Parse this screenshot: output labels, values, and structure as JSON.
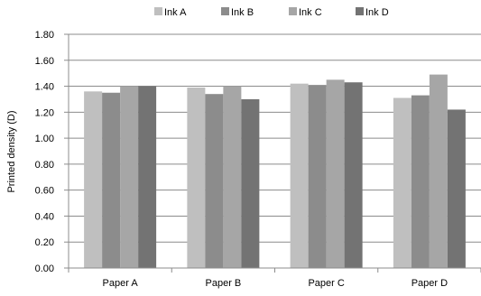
{
  "chart_data": {
    "type": "bar",
    "categories": [
      "Paper A",
      "Paper B",
      "Paper C",
      "Paper D"
    ],
    "series": [
      {
        "name": "Ink A",
        "color": "#bfbfbf",
        "values": [
          1.36,
          1.39,
          1.42,
          1.31
        ]
      },
      {
        "name": "Ink B",
        "color": "#8c8c8c",
        "values": [
          1.35,
          1.34,
          1.41,
          1.33
        ]
      },
      {
        "name": "Ink C",
        "color": "#a6a6a6",
        "values": [
          1.4,
          1.4,
          1.45,
          1.49
        ]
      },
      {
        "name": "Ink D",
        "color": "#737373",
        "values": [
          1.4,
          1.3,
          1.43,
          1.22
        ]
      }
    ],
    "ylabel": "Printed density (D)",
    "xlabel": "",
    "ylim": [
      0,
      1.8
    ],
    "yticks": [
      "0.00",
      "0.20",
      "0.40",
      "0.60",
      "0.80",
      "1.00",
      "1.20",
      "1.40",
      "1.60",
      "1.80"
    ],
    "grid": true,
    "legend_position": "top"
  }
}
